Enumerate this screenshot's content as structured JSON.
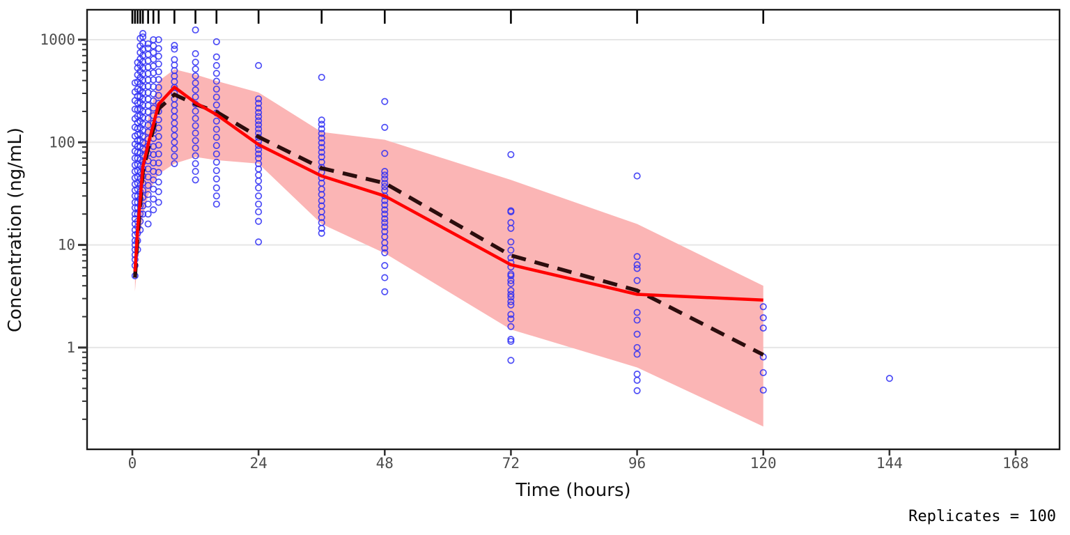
{
  "annotation": {
    "replicates_label": "Replicates = 100"
  },
  "chart_data": {
    "type": "scatter",
    "title": "",
    "xlabel": "Time (hours)",
    "ylabel": "Concentration (ng/mL)",
    "x_axis": {
      "ticks": [
        0,
        24,
        48,
        72,
        96,
        120,
        144,
        168
      ],
      "range": [
        -8.6,
        176.5
      ]
    },
    "y_axis": {
      "scale": "log10",
      "ticks": [
        1,
        10,
        100,
        1000
      ],
      "range": [
        0.102,
        1960
      ]
    },
    "grid": "horizontal-major-only",
    "legend": "none",
    "colors": {
      "observations": "#2e2ef5",
      "simulated_median": "#ff0000",
      "observed_median": "#2b0d0d",
      "prediction_interval": "#fbb5b5",
      "rug": "#000000",
      "gridline": "#e6e6e6",
      "tick_text": "#4d4d4d"
    },
    "rug_times": [
      0,
      0.5,
      1,
      1.5,
      2,
      3,
      4,
      5,
      8,
      12,
      16,
      24,
      36,
      48,
      72,
      96,
      120
    ],
    "simulated_median_line": [
      [
        0.5,
        5.5
      ],
      [
        1,
        14
      ],
      [
        1.5,
        28
      ],
      [
        2,
        58
      ],
      [
        3,
        95
      ],
      [
        4,
        150
      ],
      [
        5,
        235
      ],
      [
        8,
        345
      ],
      [
        12,
        243
      ],
      [
        16,
        186
      ],
      [
        24,
        95
      ],
      [
        36,
        47
      ],
      [
        48,
        30
      ],
      [
        72,
        6.4
      ],
      [
        96,
        3.3
      ],
      [
        120,
        2.9
      ]
    ],
    "observed_median_line": [
      [
        0.5,
        4.8
      ],
      [
        1,
        12
      ],
      [
        1.5,
        25
      ],
      [
        2,
        52
      ],
      [
        3,
        86
      ],
      [
        4,
        135
      ],
      [
        5,
        212
      ],
      [
        8,
        292
      ],
      [
        12,
        235
      ],
      [
        16,
        198
      ],
      [
        24,
        113
      ],
      [
        36,
        56
      ],
      [
        48,
        40
      ],
      [
        72,
        7.9
      ],
      [
        96,
        3.6
      ],
      [
        120,
        0.85
      ]
    ],
    "prediction_interval_ribbon": [
      [
        0.5,
        3.5,
        10
      ],
      [
        1,
        7,
        26
      ],
      [
        1.5,
        12,
        52
      ],
      [
        2,
        19,
        96
      ],
      [
        3,
        30,
        170
      ],
      [
        4,
        40,
        262
      ],
      [
        5,
        49,
        395
      ],
      [
        8,
        62,
        515
      ],
      [
        12,
        72,
        458
      ],
      [
        16,
        67,
        396
      ],
      [
        24,
        62,
        306
      ],
      [
        36,
        16,
        126
      ],
      [
        48,
        8.3,
        106
      ],
      [
        72,
        1.5,
        43
      ],
      [
        96,
        0.64,
        16
      ],
      [
        120,
        0.17,
        4.0
      ]
    ],
    "observations": [
      {
        "time": 0.5,
        "values": [
          5,
          6.3,
          7.2,
          8,
          9,
          10,
          11,
          12.5,
          14,
          16,
          18,
          20,
          23,
          26,
          30,
          34,
          39,
          45,
          52,
          60,
          70,
          82,
          96,
          115,
          140,
          170,
          210,
          255,
          310,
          380
        ]
      },
      {
        "time": 1,
        "values": [
          9,
          11,
          13,
          15,
          17,
          20,
          23,
          26,
          30,
          35,
          40,
          46,
          53,
          61,
          70,
          80,
          91,
          104,
          119,
          136,
          156,
          180,
          208,
          242,
          282,
          330,
          388,
          455,
          530,
          600
        ]
      },
      {
        "time": 1.5,
        "values": [
          14,
          17,
          20,
          24,
          28,
          33,
          38,
          44,
          51,
          59,
          68,
          79,
          91,
          105,
          121,
          139,
          160,
          184,
          212,
          244,
          280,
          322,
          370,
          426,
          490,
          565,
          650,
          750,
          870,
          1030
        ]
      },
      {
        "time": 2,
        "values": [
          20,
          24,
          29,
          34,
          40,
          47,
          55,
          64,
          74,
          86,
          99,
          114,
          131,
          151,
          174,
          200,
          230,
          264,
          304,
          350,
          402,
          462,
          530,
          610,
          700,
          805,
          925,
          1065,
          1150
        ]
      },
      {
        "time": 3,
        "values": [
          16,
          20,
          25,
          31,
          38,
          46,
          55,
          66,
          78,
          92,
          108,
          126,
          147,
          171,
          198,
          229,
          264,
          305,
          352,
          406,
          468,
          540,
          623,
          718,
          828,
          910
        ]
      },
      {
        "time": 4,
        "values": [
          22,
          28,
          35,
          43,
          52,
          63,
          76,
          91,
          109,
          130,
          154,
          182,
          215,
          253,
          297,
          348,
          407,
          475,
          554,
          645,
          750,
          872,
          1000
        ]
      },
      {
        "time": 5,
        "values": [
          26,
          33,
          41,
          51,
          63,
          77,
          94,
          114,
          138,
          166,
          200,
          240,
          287,
          343,
          409,
          487,
          580,
          690,
          820,
          1000
        ]
      },
      {
        "time": 8,
        "values": [
          62,
          73,
          86,
          100,
          116,
          134,
          154,
          177,
          203,
          232,
          265,
          302,
          343,
          390,
          442,
          500,
          566,
          640,
          810,
          880
        ]
      },
      {
        "time": 12,
        "values": [
          43,
          52,
          62,
          74,
          88,
          104,
          123,
          145,
          171,
          201,
          236,
          277,
          324,
          379,
          443,
          517,
          604,
          730,
          1245
        ]
      },
      {
        "time": 16,
        "values": [
          25,
          30,
          36,
          44,
          53,
          64,
          77,
          93,
          112,
          134,
          161,
          193,
          231,
          276,
          330,
          394,
          470,
          560,
          680,
          955
        ]
      },
      {
        "time": 24,
        "values": [
          10.7,
          17,
          21,
          25,
          30,
          36,
          42,
          48,
          55,
          62,
          70,
          77,
          85,
          93,
          102,
          112,
          123,
          135,
          148,
          162,
          178,
          195,
          215,
          240,
          265,
          560
        ]
      },
      {
        "time": 36,
        "values": [
          13,
          14.5,
          16.5,
          18.5,
          21,
          24,
          27,
          31,
          35,
          40,
          45,
          51,
          57,
          64,
          72,
          80,
          89,
          99,
          110,
          122,
          135,
          150,
          165,
          430
        ]
      },
      {
        "time": 48,
        "values": [
          3.5,
          4.8,
          6.3,
          8.4,
          9.3,
          10.5,
          12,
          13.5,
          15,
          16.5,
          18,
          20,
          22,
          24.5,
          27,
          30,
          34,
          37,
          40,
          44,
          48,
          52,
          78,
          140,
          250
        ]
      },
      {
        "time": 72,
        "values": [
          0.75,
          1.15,
          1.2,
          1.6,
          1.9,
          2.1,
          2.6,
          2.8,
          3.1,
          3.3,
          3.6,
          4.2,
          4.5,
          5.0,
          5.2,
          6.1,
          6.7,
          7.5,
          8.9,
          10.7,
          14.5,
          16.5,
          21,
          21.5,
          76
        ]
      },
      {
        "time": 96,
        "values": [
          0.38,
          0.48,
          0.55,
          0.86,
          1.0,
          1.35,
          1.85,
          2.2,
          4.5,
          5.9,
          6.4,
          7.7,
          47
        ]
      },
      {
        "time": 120,
        "values": [
          0.385,
          0.57,
          0.81,
          1.55,
          1.95,
          2.5
        ]
      },
      {
        "time": 144,
        "values": [
          0.5
        ]
      }
    ]
  }
}
